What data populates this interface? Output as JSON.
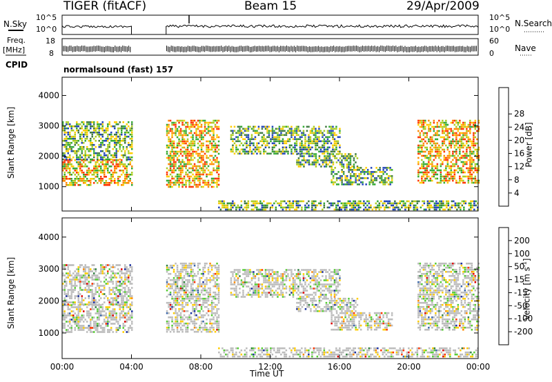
{
  "header": {
    "station": "TIGER (fitACF)",
    "beam": "Beam 15",
    "date": "29/Apr/2009"
  },
  "strips": {
    "nsky_label": "N.Sky",
    "nsky_ticks": [
      "10^5",
      "10^0"
    ],
    "nsearch_label": "N.Search",
    "nsearch_ticks": [
      "10^5",
      "10^0"
    ],
    "freq_label": "Freq.",
    "freq_unit": "[MHz]",
    "freq_ticks": [
      "18",
      "8"
    ],
    "nave_label": "Nave",
    "nave_ticks": [
      "60",
      "0"
    ],
    "cpid_label": "CPID",
    "cpid_value": "normalsound (fast) 157"
  },
  "axes": {
    "ylabel": "Slant Range [km]",
    "yticks": [
      "1000",
      "2000",
      "3000",
      "4000"
    ],
    "xticks": [
      "00:00",
      "04:00",
      "08:00",
      "12:00",
      "16:00",
      "20:00",
      "00:00"
    ],
    "xlabel": "Time UT"
  },
  "colorbars": {
    "power": {
      "label": "Power [dB]",
      "ticks": [
        "4",
        "8",
        "12",
        "16",
        "20",
        "24",
        "28"
      ],
      "colors": [
        "#0000dd",
        "#2244bb",
        "#3f7a3f",
        "#33aa33",
        "#aacc22",
        "#ffcc00",
        "#ff8800",
        "#ff3300",
        "#dd0000"
      ]
    },
    "velocity": {
      "label": "Velocity [m s",
      "label_sup": "-1",
      "label_tail": "]",
      "ticks": [
        "200",
        "100",
        "50",
        "15",
        "-15",
        "-50",
        "-100",
        "-200"
      ],
      "colors": [
        "#1a2ea0",
        "#3a66aa",
        "#2f7f3f",
        "#55cc33",
        "#bbbbbb",
        "#ffcc00",
        "#ff8800",
        "#ff3300",
        "#dd0000"
      ]
    }
  },
  "chart_data": {
    "type": "heatmap",
    "x_unit": "hours UT",
    "y_unit": "km",
    "xlim": [
      0,
      24
    ],
    "ylim": [
      200,
      4600
    ],
    "data_gap_hours": [
      4.0,
      6.0
    ],
    "power_echo_regions": [
      {
        "t0": 0.0,
        "t1": 4.0,
        "r0": 1050,
        "r1": 1900,
        "level": "high"
      },
      {
        "t0": 0.0,
        "t1": 4.0,
        "r0": 1900,
        "r1": 3150,
        "level": "medium"
      },
      {
        "t0": 6.0,
        "t1": 9.0,
        "r0": 1000,
        "r1": 3200,
        "level": "high"
      },
      {
        "t0": 9.7,
        "t1": 16.0,
        "r0": 2100,
        "r1": 3000,
        "level": "medium"
      },
      {
        "t0": 13.5,
        "t1": 17.0,
        "r0": 1650,
        "r1": 2100,
        "level": "medium"
      },
      {
        "t0": 15.5,
        "t1": 19.0,
        "r0": 1100,
        "r1": 1650,
        "level": "medium"
      },
      {
        "t0": 9.0,
        "t1": 24.0,
        "r0": 250,
        "r1": 550,
        "level": "medium"
      },
      {
        "t0": 20.5,
        "t1": 24.0,
        "r0": 1100,
        "r1": 3200,
        "level": "high"
      }
    ],
    "velocity_note_regions": [
      {
        "t0": 0.0,
        "t1": 4.0,
        "r0": 1000,
        "r1": 3000,
        "class": "-15 to 15"
      },
      {
        "t0": 9.7,
        "t1": 16.0,
        "r0": 2100,
        "r1": 3000,
        "class": "-15 to 15"
      },
      {
        "t0": 20.5,
        "t1": 24.0,
        "r0": 1100,
        "r1": 3200,
        "class": "-15 to 15"
      }
    ]
  }
}
